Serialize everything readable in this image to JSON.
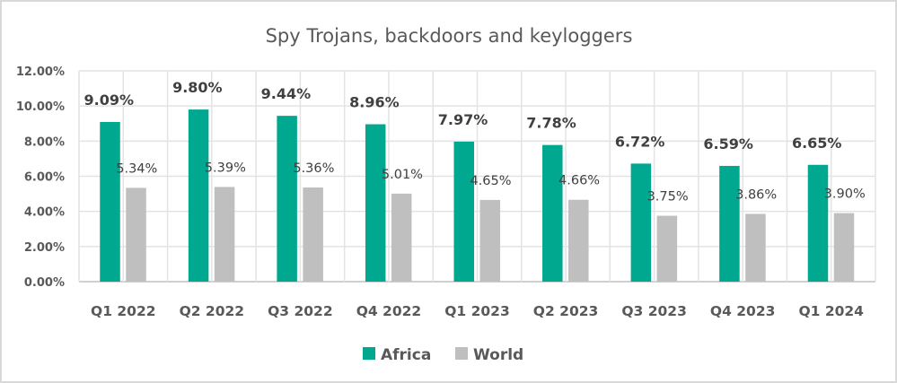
{
  "chart_data": {
    "type": "bar",
    "title": "Spy Trojans, backdoors and keyloggers",
    "xlabel": "",
    "ylabel": "",
    "ylim": [
      0,
      0.12
    ],
    "yticks": [
      0,
      0.02,
      0.04,
      0.06,
      0.08,
      0.1,
      0.12
    ],
    "ytick_labels": [
      "0.00%",
      "2.00%",
      "4.00%",
      "6.00%",
      "8.00%",
      "10.00%",
      "12.00%"
    ],
    "grid": true,
    "legend_position": "bottom",
    "categories": [
      "Q1 2022",
      "Q2 2022",
      "Q3 2022",
      "Q4 2022",
      "Q1 2023",
      "Q2 2023",
      "Q3 2023",
      "Q4 2023",
      "Q1 2024"
    ],
    "series": [
      {
        "name": "Africa",
        "color": "#00a88f",
        "values": [
          0.0909,
          0.098,
          0.0944,
          0.0896,
          0.0797,
          0.0778,
          0.0672,
          0.0659,
          0.0665
        ],
        "labels": [
          "9.09%",
          "9.80%",
          "9.44%",
          "8.96%",
          "7.97%",
          "7.78%",
          "6.72%",
          "6.59%",
          "6.65%"
        ]
      },
      {
        "name": "World",
        "color": "#bfbfbf",
        "values": [
          0.0534,
          0.0539,
          0.0536,
          0.0501,
          0.0465,
          0.0466,
          0.0375,
          0.0386,
          0.039
        ],
        "labels": [
          "5.34%",
          "5.39%",
          "5.36%",
          "5.01%",
          "4.65%",
          "4.66%",
          "3.75%",
          "3.86%",
          "3.90%"
        ]
      }
    ]
  }
}
